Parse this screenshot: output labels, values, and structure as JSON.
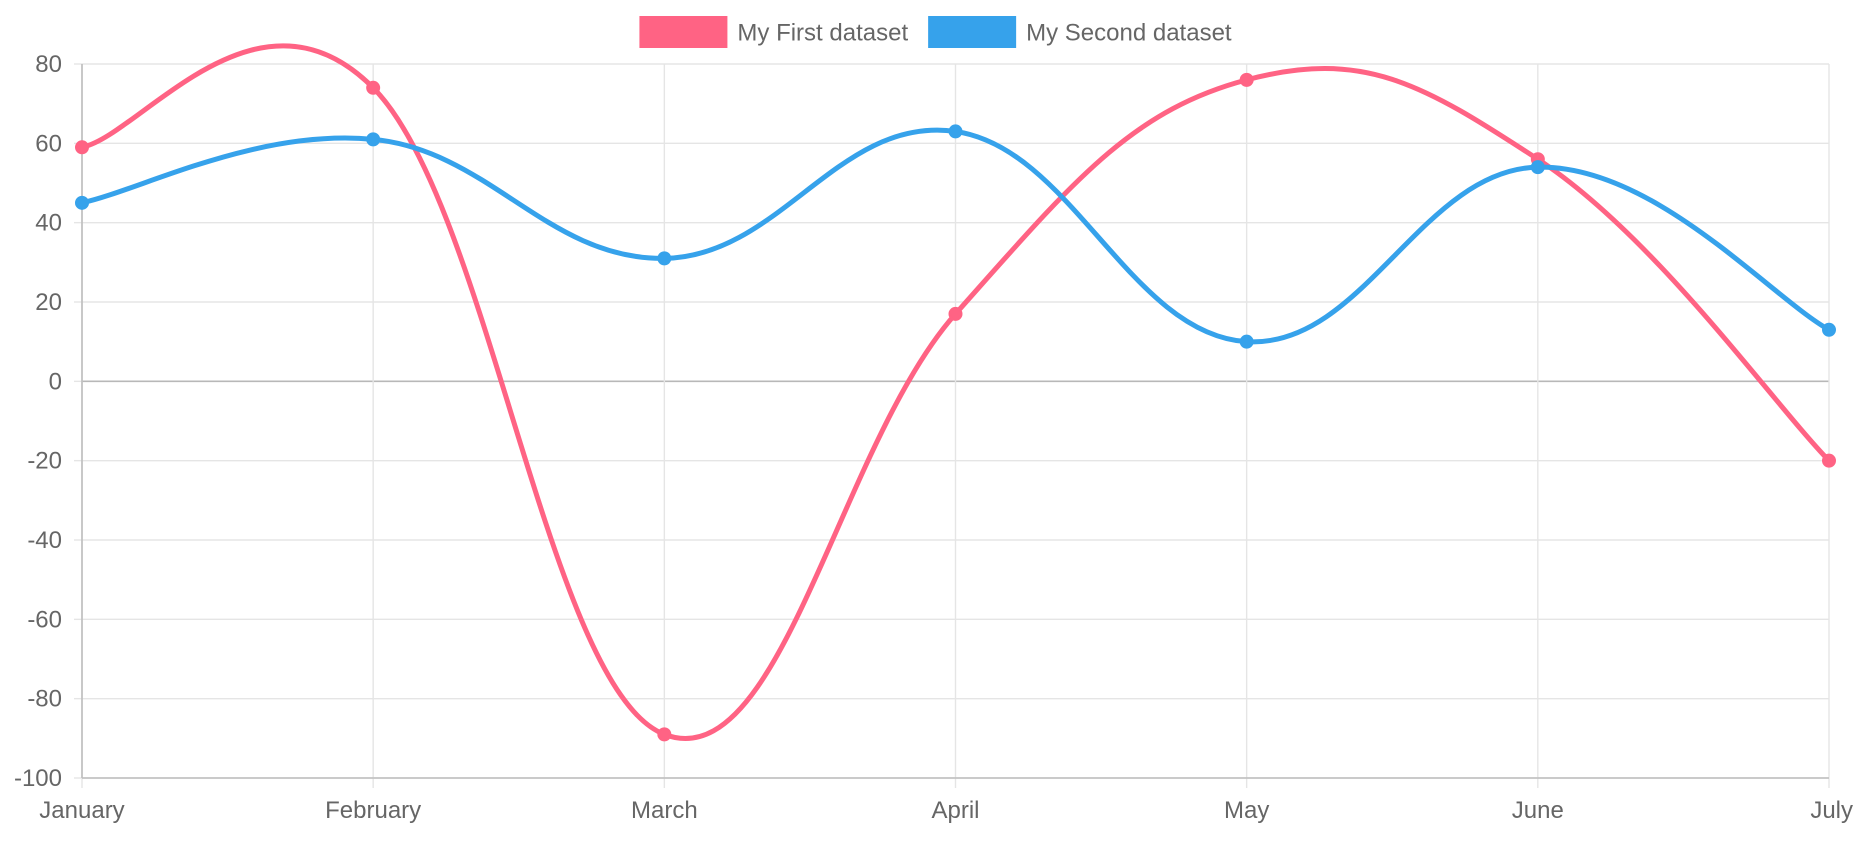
{
  "chart_data": {
    "type": "line",
    "categories": [
      "January",
      "February",
      "March",
      "April",
      "May",
      "June",
      "July"
    ],
    "series": [
      {
        "name": "My First dataset",
        "color": "#ff6384",
        "values": [
          59,
          74,
          -89,
          17,
          76,
          56,
          -20
        ]
      },
      {
        "name": "My Second dataset",
        "color": "#36a2eb",
        "values": [
          45,
          61,
          31,
          63,
          10,
          54,
          13
        ]
      }
    ],
    "ylim": [
      -100,
      80
    ],
    "y_ticks": [
      "80",
      "60",
      "40",
      "20",
      "0",
      "-20",
      "-40",
      "-60",
      "-80",
      "-100"
    ],
    "y_tick_values": [
      80,
      60,
      40,
      20,
      0,
      -20,
      -40,
      -60,
      -80,
      -100
    ],
    "grid": true,
    "legend_position": "top-center",
    "curve": "smooth"
  }
}
